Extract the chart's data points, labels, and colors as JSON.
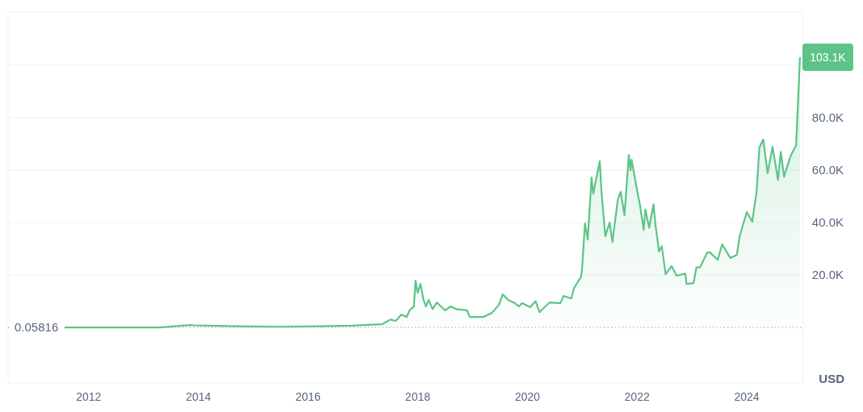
{
  "chart_data": {
    "type": "area",
    "ylabel": "USD",
    "x": [
      2011.56,
      2012.2,
      2012.8,
      2013.3,
      2013.85,
      2013.92,
      2014.3,
      2014.9,
      2015.5,
      2016.2,
      2016.8,
      2017.1,
      2017.35,
      2017.5,
      2017.6,
      2017.7,
      2017.8,
      2017.85,
      2017.93,
      2017.96,
      2018.0,
      2018.05,
      2018.1,
      2018.15,
      2018.2,
      2018.27,
      2018.35,
      2018.5,
      2018.6,
      2018.7,
      2018.9,
      2018.95,
      2019.2,
      2019.35,
      2019.48,
      2019.55,
      2019.65,
      2019.75,
      2019.85,
      2019.9,
      2020.05,
      2020.15,
      2020.22,
      2020.4,
      2020.6,
      2020.66,
      2020.8,
      2020.85,
      2020.98,
      2021.0,
      2021.05,
      2021.1,
      2021.17,
      2021.2,
      2021.32,
      2021.35,
      2021.42,
      2021.5,
      2021.55,
      2021.65,
      2021.7,
      2021.77,
      2021.85,
      2021.88,
      2021.9,
      2022.02,
      2022.05,
      2022.12,
      2022.15,
      2022.22,
      2022.3,
      2022.33,
      2022.4,
      2022.45,
      2022.52,
      2022.63,
      2022.72,
      2022.88,
      2022.9,
      2023.03,
      2023.08,
      2023.15,
      2023.28,
      2023.33,
      2023.47,
      2023.55,
      2023.7,
      2023.82,
      2023.87,
      2024.0,
      2024.1,
      2024.18,
      2024.23,
      2024.3,
      2024.38,
      2024.47,
      2024.57,
      2024.62,
      2024.68,
      2024.8,
      2024.9,
      2024.97
    ],
    "series": [
      {
        "color": "#5cc488",
        "values": [
          0,
          0,
          0,
          0,
          900,
          800,
          600,
          400,
          250,
          420,
          700,
          1000,
          1200,
          3000,
          2500,
          4900,
          4000,
          6500,
          8000,
          17800,
          13200,
          16600,
          11000,
          8000,
          10500,
          7000,
          9500,
          6500,
          8000,
          7000,
          6500,
          4000,
          4000,
          5500,
          8600,
          12600,
          10500,
          9500,
          8000,
          9300,
          7700,
          10000,
          5800,
          9500,
          9200,
          12000,
          11000,
          15000,
          19400,
          23400,
          39700,
          33500,
          57200,
          51000,
          63400,
          52000,
          34800,
          40000,
          32600,
          49000,
          51700,
          42800,
          65800,
          60000,
          64000,
          50000,
          47000,
          37200,
          45000,
          38000,
          47000,
          40000,
          29000,
          31000,
          20300,
          23400,
          19700,
          20500,
          16600,
          16900,
          22800,
          23000,
          28600,
          28600,
          25800,
          31700,
          26500,
          27700,
          34800,
          44000,
          40300,
          52000,
          68600,
          71700,
          58800,
          68900,
          56300,
          67000,
          57500,
          65500,
          69500,
          103100
        ]
      }
    ],
    "xlim": [
      2010.53,
      2025.03
    ],
    "xticks": [
      2012,
      2014,
      2016,
      2018,
      2020,
      2022,
      2024
    ],
    "ylim": [
      -21200,
      120300
    ],
    "yticks": [
      {
        "value": 20000,
        "label": "20.0K"
      },
      {
        "value": 40000,
        "label": "40.0K"
      },
      {
        "value": 60000,
        "label": "60.0K"
      },
      {
        "value": 80000,
        "label": "80.0K"
      },
      {
        "value": 100000,
        "label": null
      }
    ],
    "grid": "y",
    "ref_lines": [
      {
        "axis": "y",
        "value": 0.05816,
        "label": "0.05816",
        "line_style": "dotted",
        "color": "#a0a4ad"
      }
    ],
    "annotations": [
      {
        "text": "103.1K",
        "x": 2024.97,
        "y": 103100
      }
    ]
  }
}
